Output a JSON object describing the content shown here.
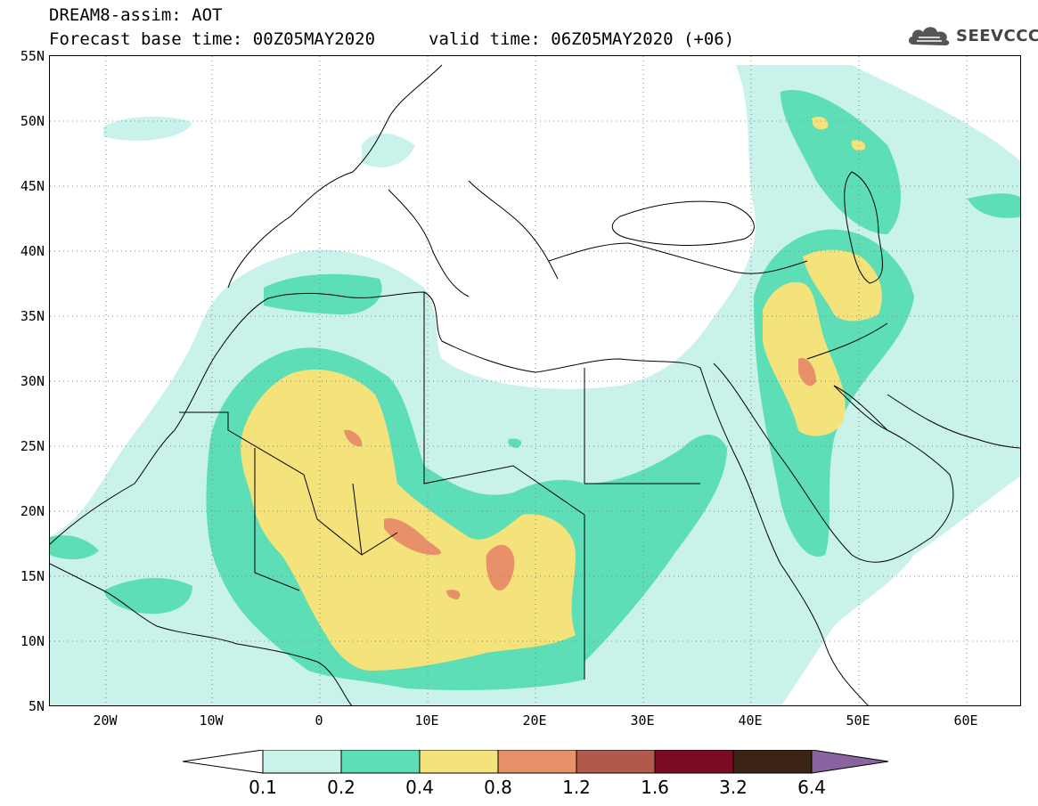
{
  "header": {
    "title": "DREAM8-assim: AOT",
    "base_time_line": "Forecast base time: 00Z05MAY2020",
    "valid_time_line": "valid time: 06Z05MAY2020 (+06)"
  },
  "logo": {
    "text": "SEEVCCC",
    "icon": "cloud-icon"
  },
  "map": {
    "lat_labels": [
      "55N",
      "50N",
      "45N",
      "40N",
      "35N",
      "30N",
      "25N",
      "20N",
      "15N",
      "10N",
      "5N"
    ],
    "lon_labels": [
      "20W",
      "10W",
      "0",
      "10E",
      "20E",
      "30E",
      "40E",
      "50E",
      "60E"
    ]
  },
  "legend": {
    "levels": [
      "0.1",
      "0.2",
      "0.4",
      "0.8",
      "1.2",
      "1.6",
      "3.2",
      "6.4"
    ],
    "colors": [
      "#ffffff",
      "#c9f2ea",
      "#5ddeb6",
      "#f4e27a",
      "#e8906a",
      "#b15a4c",
      "#7e0b25",
      "#3a2315",
      "#8a64a0"
    ]
  }
}
